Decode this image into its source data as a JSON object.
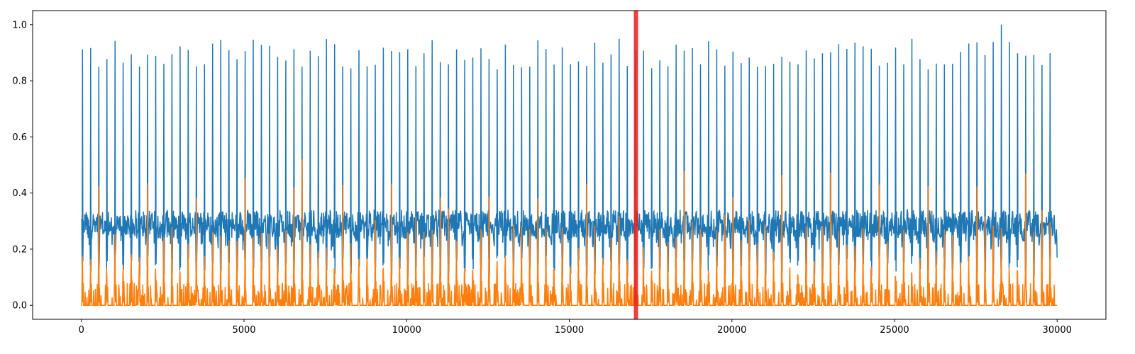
{
  "chart_data": {
    "type": "line",
    "title": "",
    "xlabel": "",
    "ylabel": "",
    "xlim": [
      -1500,
      31500
    ],
    "ylim": [
      -0.05,
      1.05
    ],
    "grid": false,
    "x_ticks": [
      0,
      5000,
      10000,
      15000,
      20000,
      25000,
      30000
    ],
    "x_tick_labels": [
      "0",
      "5000",
      "10000",
      "15000",
      "20000",
      "25000",
      "30000"
    ],
    "y_ticks": [
      0.0,
      0.2,
      0.4,
      0.6,
      0.8,
      1.0
    ],
    "y_tick_labels": [
      "0.0",
      "0.2",
      "0.4",
      "0.6",
      "0.8",
      "1.0"
    ],
    "colors": {
      "series_1": "#1f77b4",
      "series_2": "#ff7f0e",
      "marker": "#e8201c"
    },
    "series": [
      {
        "color": "#1f77b4",
        "description_values": "Periodic signal of ~120 beats over x=0..30000; baseline oscillates ~0.1-0.35, sharp peaks reach ~0.85-1.0",
        "x_range": [
          0,
          30000
        ],
        "beat_count": 120,
        "baseline_range": [
          0.1,
          0.36
        ],
        "peak_range": [
          0.84,
          1.0
        ],
        "peak_max_x": 28300,
        "peak_max_y": 1.0
      },
      {
        "color": "#ff7f0e",
        "description_values": "Periodic signal aligned with the first; mostly near 0 with peaks ~0.2-0.52",
        "x_range": [
          0,
          30000
        ],
        "beat_count": 120,
        "baseline_range": [
          0.0,
          0.03
        ],
        "peak_range": [
          0.1,
          0.52
        ],
        "peak_max_x": 6650,
        "peak_max_y": 0.52
      }
    ],
    "vertical_marker": {
      "x": 17050,
      "color": "#e8201c"
    }
  }
}
